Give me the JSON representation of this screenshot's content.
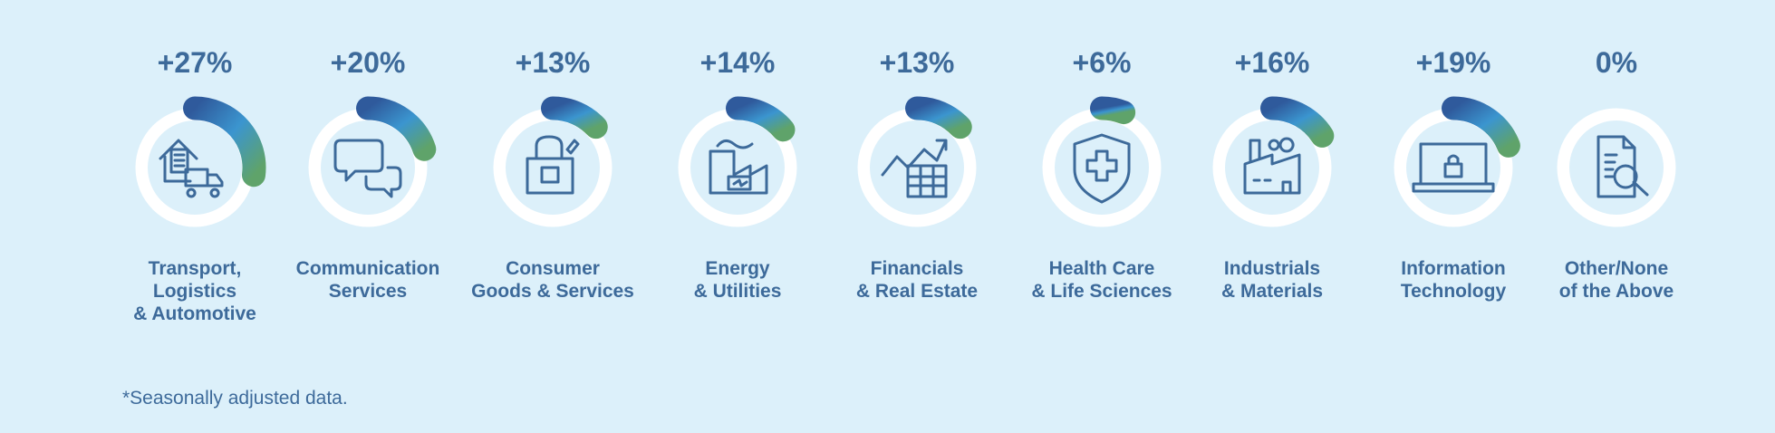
{
  "chart_data": {
    "type": "gauge",
    "categories": [
      "Transport,\nLogistics\n& Automotive",
      "Communication\nServices",
      "Consumer\nGoods & Services",
      "Energy\n& Utilities",
      "Financials\n& Real Estate",
      "Health Care\n& Life Sciences",
      "Industrials\n& Materials",
      "Information\nTechnology",
      "Other/None\nof the Above"
    ],
    "values": [
      27,
      20,
      13,
      14,
      13,
      6,
      16,
      19,
      0
    ],
    "value_labels": [
      "+27%",
      "+20%",
      "+13%",
      "+14%",
      "+13%",
      "+6%",
      "+16%",
      "+19%",
      "0%"
    ],
    "ylim": [
      0,
      100
    ],
    "note": "*Seasonally adjusted data."
  }
}
